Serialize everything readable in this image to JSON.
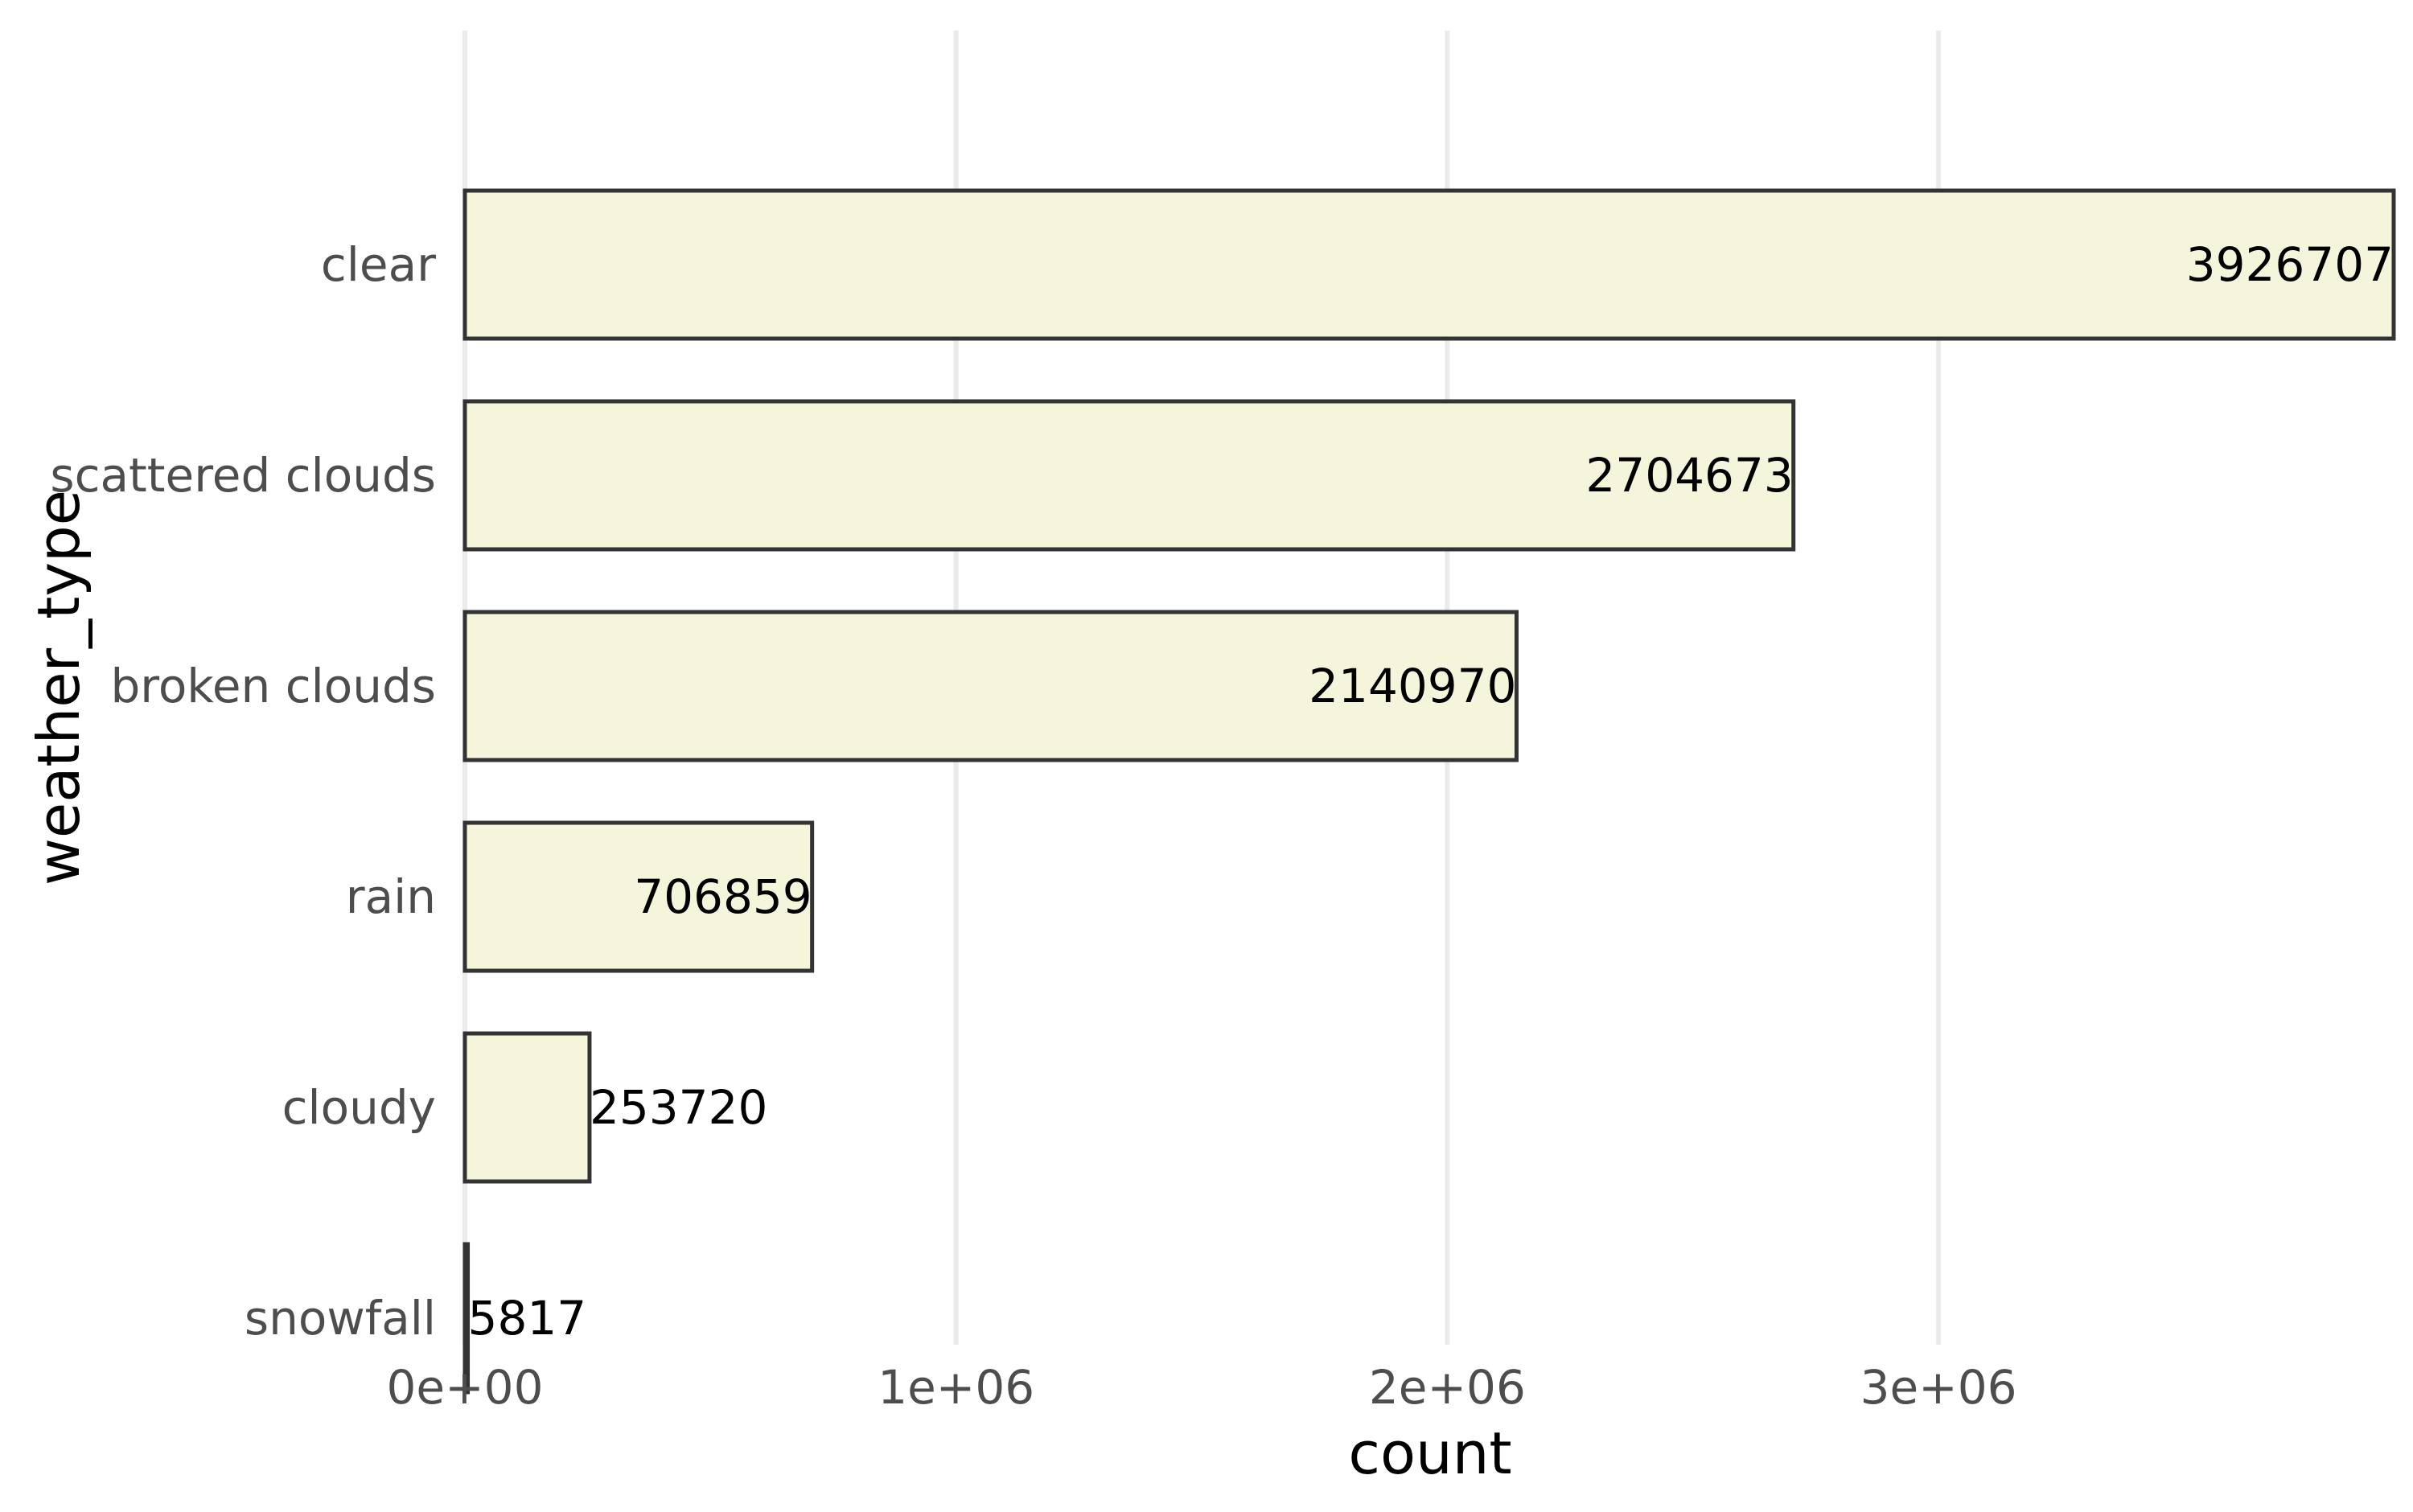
{
  "chart_data": {
    "type": "bar",
    "orientation": "horizontal",
    "categories": [
      "clear",
      "scattered clouds",
      "broken clouds",
      "rain",
      "cloudy",
      "snowfall"
    ],
    "values": [
      3926707,
      2704673,
      2140970,
      706859,
      253720,
      5817
    ],
    "value_labels": [
      "3926707",
      "2704673",
      "2140970",
      "706859",
      "253720",
      "5817"
    ],
    "xlabel": "count",
    "ylabel": "weather_type",
    "xlim": [
      0,
      3926707
    ],
    "x_ticks": [
      0,
      1000000,
      2000000,
      3000000
    ],
    "x_tick_labels": [
      "0e+00",
      "1e+06",
      "2e+06",
      "3e+06"
    ],
    "grid": "vertical major",
    "colors": {
      "bar_fill": "#f5f5dc",
      "bar_outline": "#333333",
      "grid": "#ebebeb",
      "tick_text": "#4d4d4d",
      "title_text": "#000000"
    }
  }
}
